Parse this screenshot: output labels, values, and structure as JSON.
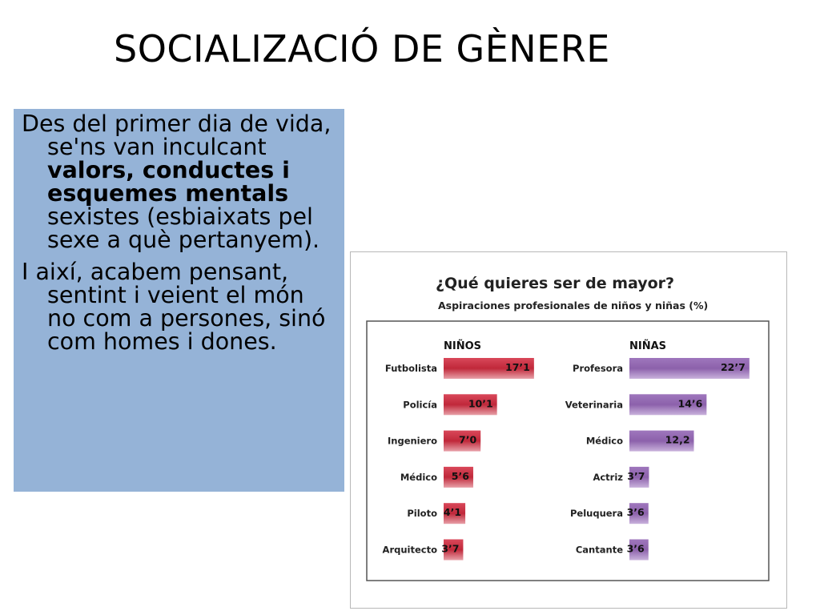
{
  "slide": {
    "title": "SOCIALIZACIÓ DE GÈNERE",
    "paragraph_1": {
      "before": "Des del primer dia de vida, se'ns van inculcant ",
      "bold": "valors, conductes i esquemes mentals",
      "after": " sexistes (esbiaixats pel sexe a què pertanyem)."
    },
    "paragraph_2": "I així, acabem pensant, sentint i veient el món no com a persones, sinó com homes i dones."
  },
  "colors": {
    "text_box_bg": "#95b3d7",
    "boys_bar": "#c0283a",
    "girls_bar": "#8c61ab"
  },
  "chart_data": {
    "type": "bar",
    "orientation": "horizontal",
    "title": "¿Qué quieres ser de mayor?",
    "subtitle": "Aspiraciones profesionales de niños y niñas (%)",
    "xlim": [
      0,
      25
    ],
    "grid": false,
    "legend": "none",
    "groups": [
      {
        "name": "NIÑOS",
        "color": "#c0283a",
        "categories": [
          "Futbolista",
          "Policía",
          "Ingeniero",
          "Médico",
          "Piloto",
          "Arquitecto"
        ],
        "values": [
          17.1,
          10.1,
          7.0,
          5.6,
          4.1,
          3.7
        ],
        "value_labels": [
          "17’1",
          "10’1",
          "7’0",
          "5’6",
          "4’1",
          "3’7"
        ]
      },
      {
        "name": "NIÑAS",
        "color": "#8c61ab",
        "categories": [
          "Profesora",
          "Veterinaria",
          "Médico",
          "Actriz",
          "Peluquera",
          "Cantante"
        ],
        "values": [
          22.7,
          14.6,
          12.2,
          3.7,
          3.6,
          3.6
        ],
        "value_labels": [
          "22’7",
          "14’6",
          "12,2",
          "3’7",
          "3’6",
          "3’6"
        ]
      }
    ]
  }
}
